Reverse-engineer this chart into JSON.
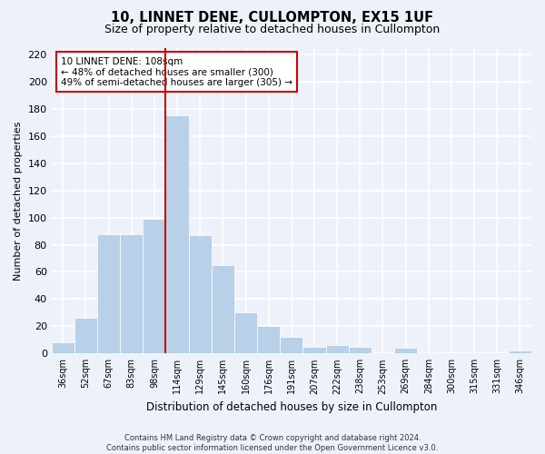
{
  "title1": "10, LINNET DENE, CULLOMPTON, EX15 1UF",
  "title2": "Size of property relative to detached houses in Cullompton",
  "xlabel": "Distribution of detached houses by size in Cullompton",
  "ylabel": "Number of detached properties",
  "categories": [
    "36sqm",
    "52sqm",
    "67sqm",
    "83sqm",
    "98sqm",
    "114sqm",
    "129sqm",
    "145sqm",
    "160sqm",
    "176sqm",
    "191sqm",
    "207sqm",
    "222sqm",
    "238sqm",
    "253sqm",
    "269sqm",
    "284sqm",
    "300sqm",
    "315sqm",
    "331sqm",
    "346sqm"
  ],
  "values": [
    8,
    26,
    88,
    88,
    99,
    175,
    87,
    65,
    30,
    20,
    12,
    5,
    6,
    5,
    0,
    4,
    0,
    0,
    0,
    0,
    2
  ],
  "bar_color": "#b8d0e8",
  "bar_edge_color": "#ffffff",
  "vline_color": "#cc0000",
  "annotation_text": "10 LINNET DENE: 108sqm\n← 48% of detached houses are smaller (300)\n49% of semi-detached houses are larger (305) →",
  "annotation_box_color": "#ffffff",
  "annotation_box_edge": "#cc0000",
  "ylim": [
    0,
    225
  ],
  "yticks": [
    0,
    20,
    40,
    60,
    80,
    100,
    120,
    140,
    160,
    180,
    200,
    220
  ],
  "footnote": "Contains HM Land Registry data © Crown copyright and database right 2024.\nContains public sector information licensed under the Open Government Licence v3.0.",
  "bg_color": "#edf2fa",
  "grid_color": "#ffffff",
  "title_fontsize": 10.5,
  "subtitle_fontsize": 9
}
